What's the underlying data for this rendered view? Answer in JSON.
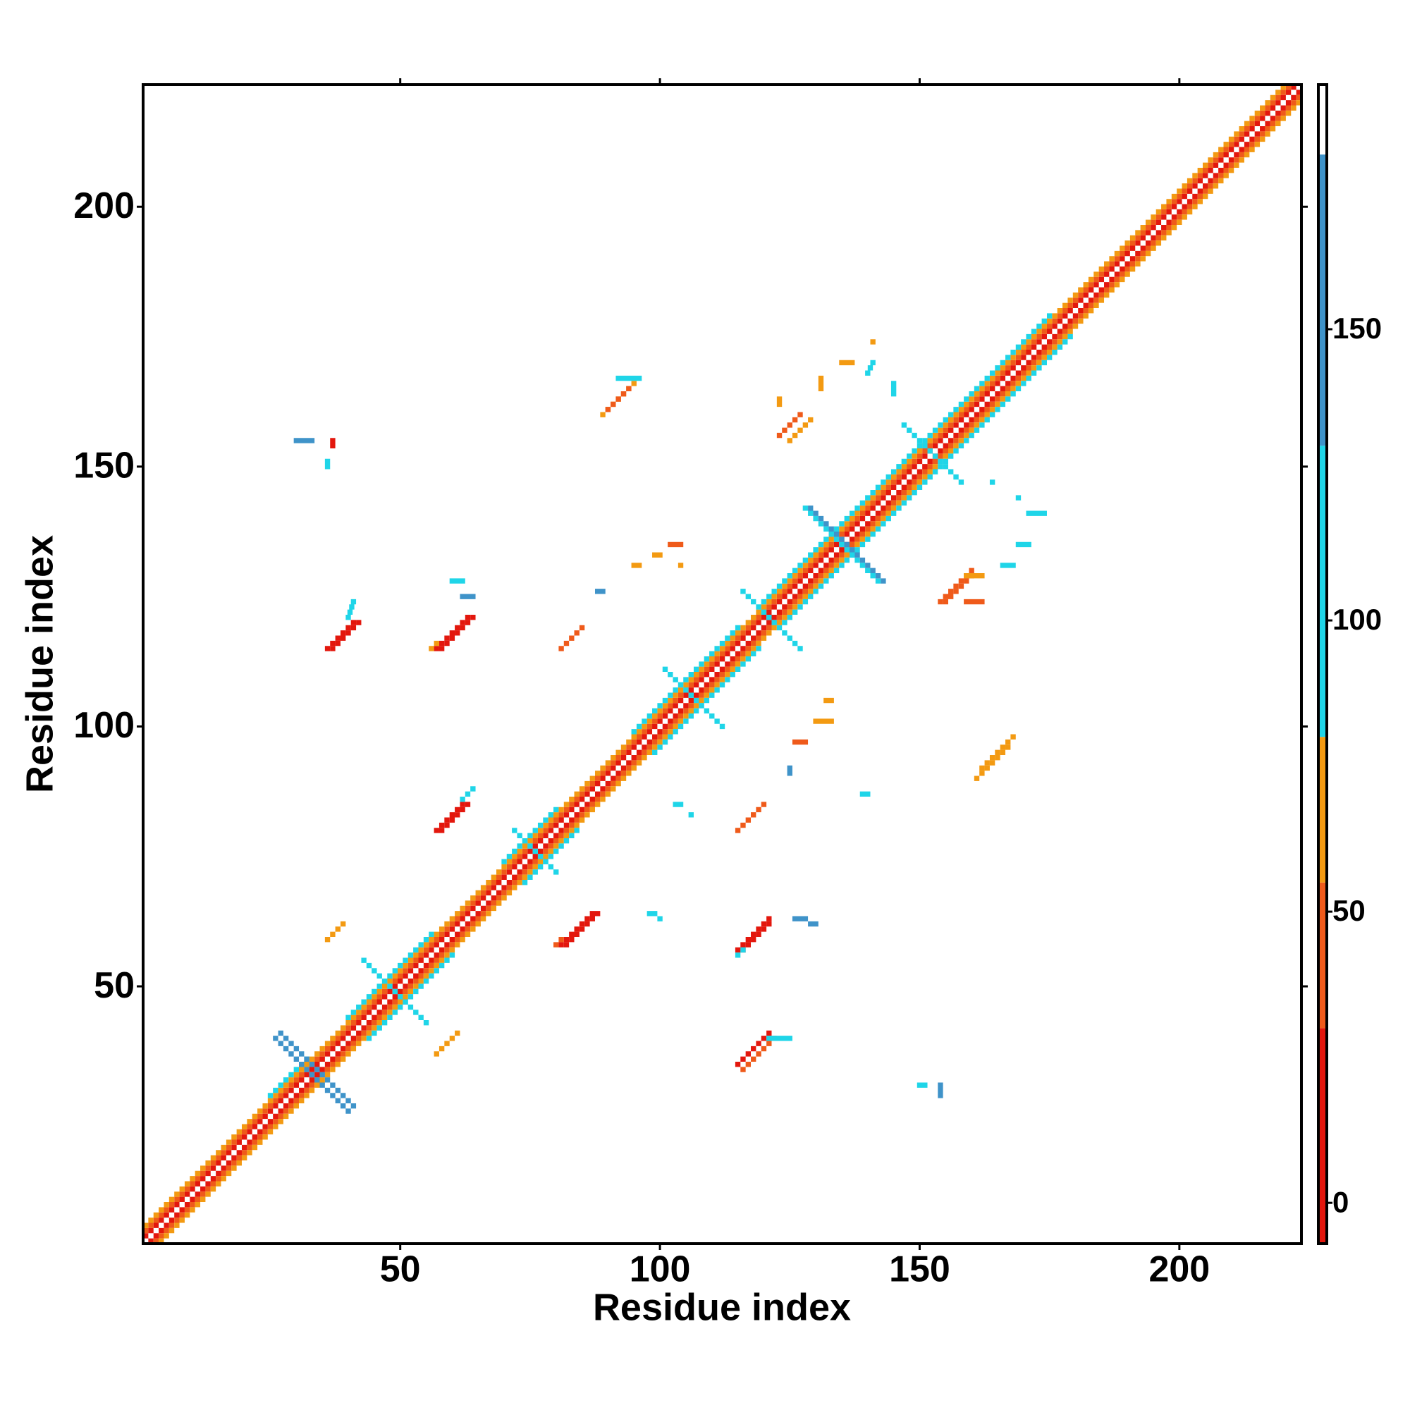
{
  "chart_data": {
    "type": "heatmap",
    "x_label": "Residue index",
    "y_label": "Residue index",
    "xlim": [
      0.5,
      223.5
    ],
    "ylim": [
      0.5,
      223.5
    ],
    "xticks": [
      50,
      100,
      150,
      200
    ],
    "yticks": [
      50,
      100,
      150,
      200
    ],
    "colorbar": {
      "lim": [
        -7,
        192
      ],
      "ticks": [
        0,
        50,
        100,
        150
      ],
      "bounds": [
        -7,
        30,
        55,
        80,
        130,
        180,
        192
      ],
      "colors": [
        "#e3170d",
        "#ef5a1a",
        "#f39a12",
        "#1fd5e8",
        "#3f93c9",
        "#ffffff"
      ]
    },
    "strips": [
      [
        1,
        2,
        222,
        223,
        10
      ],
      [
        2,
        1,
        223,
        222,
        10
      ],
      [
        1,
        3,
        221,
        223,
        40
      ],
      [
        3,
        1,
        223,
        221,
        40
      ],
      [
        1,
        4,
        220,
        223,
        65
      ],
      [
        4,
        1,
        223,
        220,
        65
      ],
      [
        40,
        44,
        56,
        60,
        100
      ],
      [
        44,
        40,
        60,
        56,
        100
      ],
      [
        95,
        99,
        115,
        119,
        100
      ],
      [
        99,
        95,
        119,
        115,
        100
      ],
      [
        120,
        124,
        175,
        179,
        100
      ],
      [
        124,
        120,
        179,
        175,
        100
      ],
      [
        25,
        29,
        32,
        36,
        100
      ],
      [
        70,
        74,
        80,
        84,
        100
      ],
      [
        74,
        70,
        84,
        80,
        100
      ],
      [
        27,
        41,
        41,
        27,
        150
      ],
      [
        26,
        40,
        40,
        26,
        150
      ],
      [
        43,
        55,
        55,
        43,
        100
      ],
      [
        72,
        80,
        80,
        72,
        100
      ],
      [
        101,
        111,
        112,
        100,
        100
      ],
      [
        116,
        126,
        127,
        115,
        100
      ],
      [
        128,
        142,
        142,
        128,
        100
      ],
      [
        129,
        142,
        143,
        128,
        150
      ],
      [
        147,
        158,
        158,
        147,
        100
      ],
      [
        36,
        115,
        41,
        120,
        10
      ],
      [
        37,
        115,
        42,
        120,
        10
      ],
      [
        40,
        121,
        41,
        124,
        100
      ],
      [
        57,
        115,
        63,
        121,
        10
      ],
      [
        58,
        115,
        64,
        121,
        10
      ],
      [
        56,
        115,
        57,
        116,
        65
      ],
      [
        57,
        80,
        62,
        85,
        10
      ],
      [
        58,
        80,
        63,
        85,
        10
      ],
      [
        62,
        86,
        64,
        88,
        100
      ],
      [
        81,
        58,
        87,
        64,
        10
      ],
      [
        82,
        58,
        88,
        64,
        10
      ],
      [
        80,
        58,
        81,
        59,
        40
      ],
      [
        115,
        57,
        121,
        63,
        10
      ],
      [
        116,
        57,
        121,
        62,
        10
      ],
      [
        115,
        56,
        116,
        57,
        100
      ],
      [
        115,
        35,
        121,
        41,
        10
      ],
      [
        116,
        34,
        122,
        40,
        40
      ],
      [
        121,
        40,
        125,
        40,
        100
      ],
      [
        154,
        124,
        160,
        130,
        40
      ],
      [
        155,
        124,
        160,
        129,
        40
      ],
      [
        159,
        129,
        162,
        129,
        65
      ],
      [
        123,
        156,
        127,
        160,
        40
      ],
      [
        125,
        155,
        129,
        159,
        65
      ],
      [
        89,
        160,
        95,
        166,
        65
      ],
      [
        90,
        161,
        94,
        165,
        40
      ],
      [
        92,
        167,
        96,
        167,
        100
      ],
      [
        161,
        90,
        167,
        96,
        65
      ],
      [
        162,
        92,
        168,
        98,
        65
      ],
      [
        115,
        80,
        120,
        85,
        40
      ],
      [
        81,
        115,
        85,
        119,
        40
      ],
      [
        36,
        59,
        39,
        62,
        65
      ],
      [
        57,
        37,
        61,
        41,
        65
      ],
      [
        30,
        155,
        33,
        155,
        150
      ],
      [
        36,
        150,
        36,
        151,
        100
      ],
      [
        37,
        154,
        37,
        155,
        10
      ],
      [
        60,
        128,
        62,
        128,
        100
      ],
      [
        62,
        125,
        64,
        125,
        150
      ],
      [
        88,
        126,
        89,
        126,
        150
      ],
      [
        125,
        91,
        125,
        92,
        150
      ],
      [
        126,
        63,
        128,
        63,
        150
      ],
      [
        129,
        62,
        130,
        62,
        150
      ],
      [
        154,
        29,
        154,
        31,
        150
      ],
      [
        150,
        31,
        151,
        31,
        100
      ],
      [
        98,
        64,
        99,
        64,
        100
      ],
      [
        100,
        63,
        100,
        63,
        100
      ],
      [
        171,
        141,
        174,
        141,
        100
      ],
      [
        169,
        144,
        169,
        144,
        100
      ],
      [
        164,
        147,
        164,
        147,
        100
      ],
      [
        131,
        165,
        131,
        167,
        65
      ],
      [
        135,
        170,
        137,
        170,
        65
      ],
      [
        141,
        174,
        141,
        174,
        65
      ],
      [
        140,
        168,
        141,
        170,
        100
      ],
      [
        145,
        164,
        145,
        166,
        100
      ],
      [
        123,
        162,
        123,
        163,
        65
      ],
      [
        95,
        131,
        96,
        131,
        65
      ],
      [
        99,
        133,
        100,
        133,
        65
      ],
      [
        102,
        135,
        104,
        135,
        40
      ],
      [
        104,
        131,
        104,
        131,
        65
      ],
      [
        130,
        101,
        133,
        101,
        65
      ],
      [
        132,
        105,
        133,
        105,
        65
      ],
      [
        126,
        97,
        128,
        97,
        40
      ],
      [
        169,
        135,
        171,
        135,
        100
      ],
      [
        166,
        131,
        168,
        131,
        100
      ],
      [
        159,
        124,
        162,
        124,
        40
      ],
      [
        103,
        85,
        104,
        85,
        100
      ],
      [
        106,
        83,
        106,
        83,
        100
      ],
      [
        139,
        87,
        140,
        87,
        100
      ]
    ]
  }
}
